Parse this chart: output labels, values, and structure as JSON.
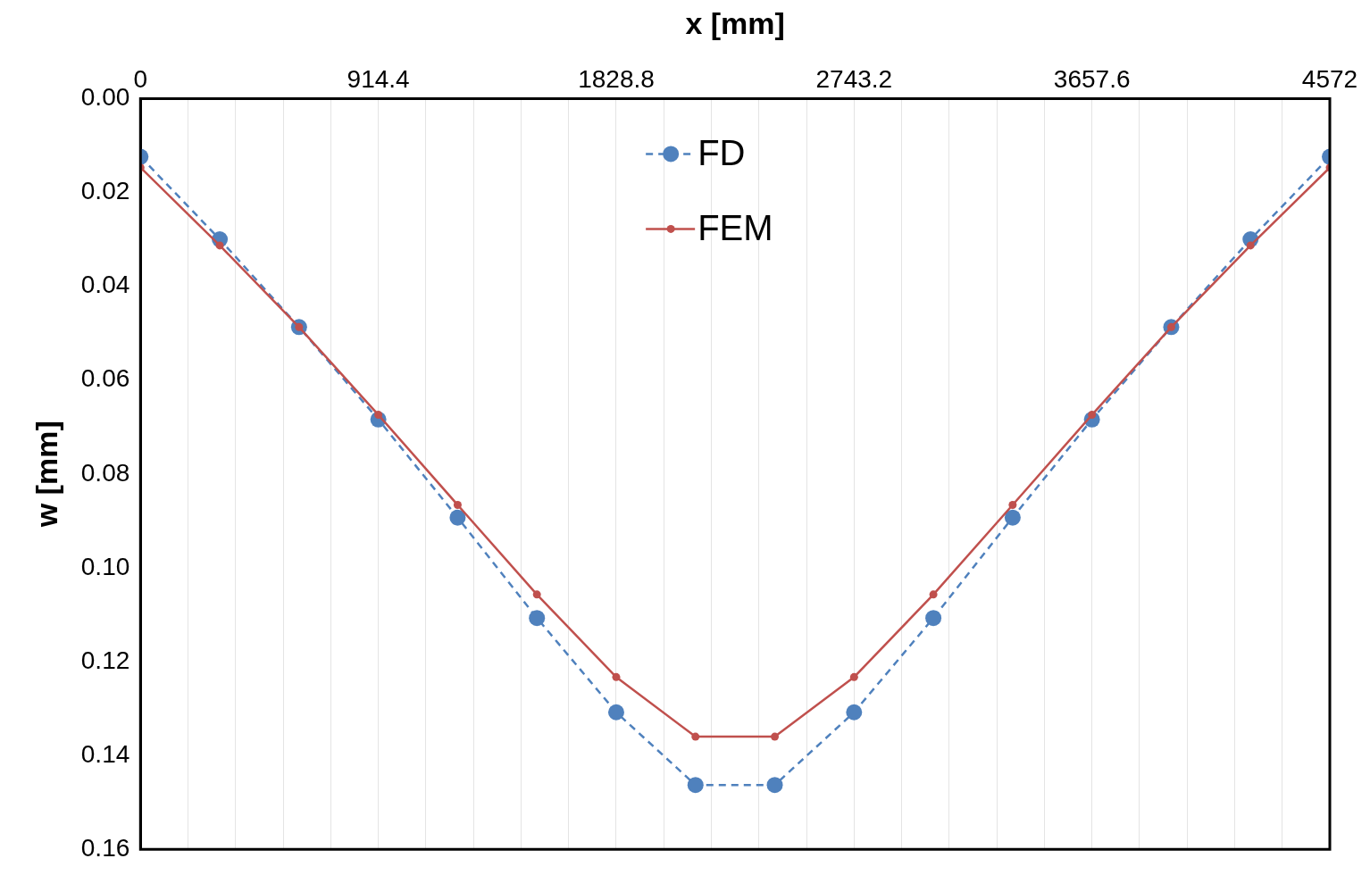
{
  "chart_data": {
    "type": "line",
    "xlabel": "x [mm]",
    "ylabel": "w [mm]",
    "x": [
      0,
      304.8,
      609.6,
      914.4,
      1219.2,
      1524,
      1828.8,
      2133.6,
      2438.4,
      2743.2,
      3048,
      3352.8,
      3657.6,
      3962.4,
      4267.2,
      4572
    ],
    "series": [
      {
        "name": "FD",
        "color": "#4f81bd",
        "marker": "circle",
        "line_style": "dashed",
        "values": [
          0.0124,
          0.03,
          0.0487,
          0.0684,
          0.0893,
          0.1107,
          0.1308,
          0.1463,
          0.1463,
          0.1308,
          0.1107,
          0.0893,
          0.0684,
          0.0487,
          0.03,
          0.0124
        ]
      },
      {
        "name": "FEM",
        "color": "#c0504d",
        "marker": "circle",
        "line_style": "solid",
        "values": [
          0.0147,
          0.0313,
          0.0487,
          0.0674,
          0.0866,
          0.1057,
          0.1233,
          0.136,
          0.136,
          0.1233,
          0.1057,
          0.0866,
          0.0674,
          0.0487,
          0.0313,
          0.0147
        ]
      }
    ],
    "xlim": [
      0,
      4572
    ],
    "xticks": [
      0,
      {
        "value": 182.88,
        "label": null
      },
      {
        "value": 365.76,
        "label": null
      },
      {
        "value": 548.64,
        "label": null
      },
      {
        "value": 731.52,
        "label": null
      },
      914.4,
      {
        "value": 1097.28,
        "label": null
      },
      {
        "value": 1280.16,
        "label": null
      },
      {
        "value": 1463.04,
        "label": null
      },
      {
        "value": 1645.92,
        "label": null
      },
      1828.8,
      {
        "value": 2011.68,
        "label": null
      },
      {
        "value": 2194.56,
        "label": null
      },
      {
        "value": 2377.44,
        "label": null
      },
      {
        "value": 2560.32,
        "label": null
      },
      2743.2,
      {
        "value": 2926.08,
        "label": null
      },
      {
        "value": 3108.96,
        "label": null
      },
      {
        "value": 3291.84,
        "label": null
      },
      {
        "value": 3474.72,
        "label": null
      },
      3657.6,
      {
        "value": 3840.48,
        "label": null
      },
      {
        "value": 4023.36,
        "label": null
      },
      {
        "value": 4206.24,
        "label": null
      },
      {
        "value": 4389.12,
        "label": null
      },
      4572
    ],
    "ylim": [
      0.16,
      0
    ],
    "yticks": [
      {
        "value": 0,
        "label": "0.00"
      },
      {
        "value": 0.02,
        "label": "0.02"
      },
      {
        "value": 0.04,
        "label": "0.04"
      },
      {
        "value": 0.06,
        "label": "0.06"
      },
      {
        "value": 0.08,
        "label": "0.08"
      },
      {
        "value": 0.1,
        "label": "0.10"
      },
      {
        "value": 0.12,
        "label": "0.12"
      },
      {
        "value": 0.14,
        "label": "0.14"
      },
      {
        "value": 0.16,
        "label": "0.16"
      }
    ],
    "grid": "x",
    "legend": "top"
  }
}
